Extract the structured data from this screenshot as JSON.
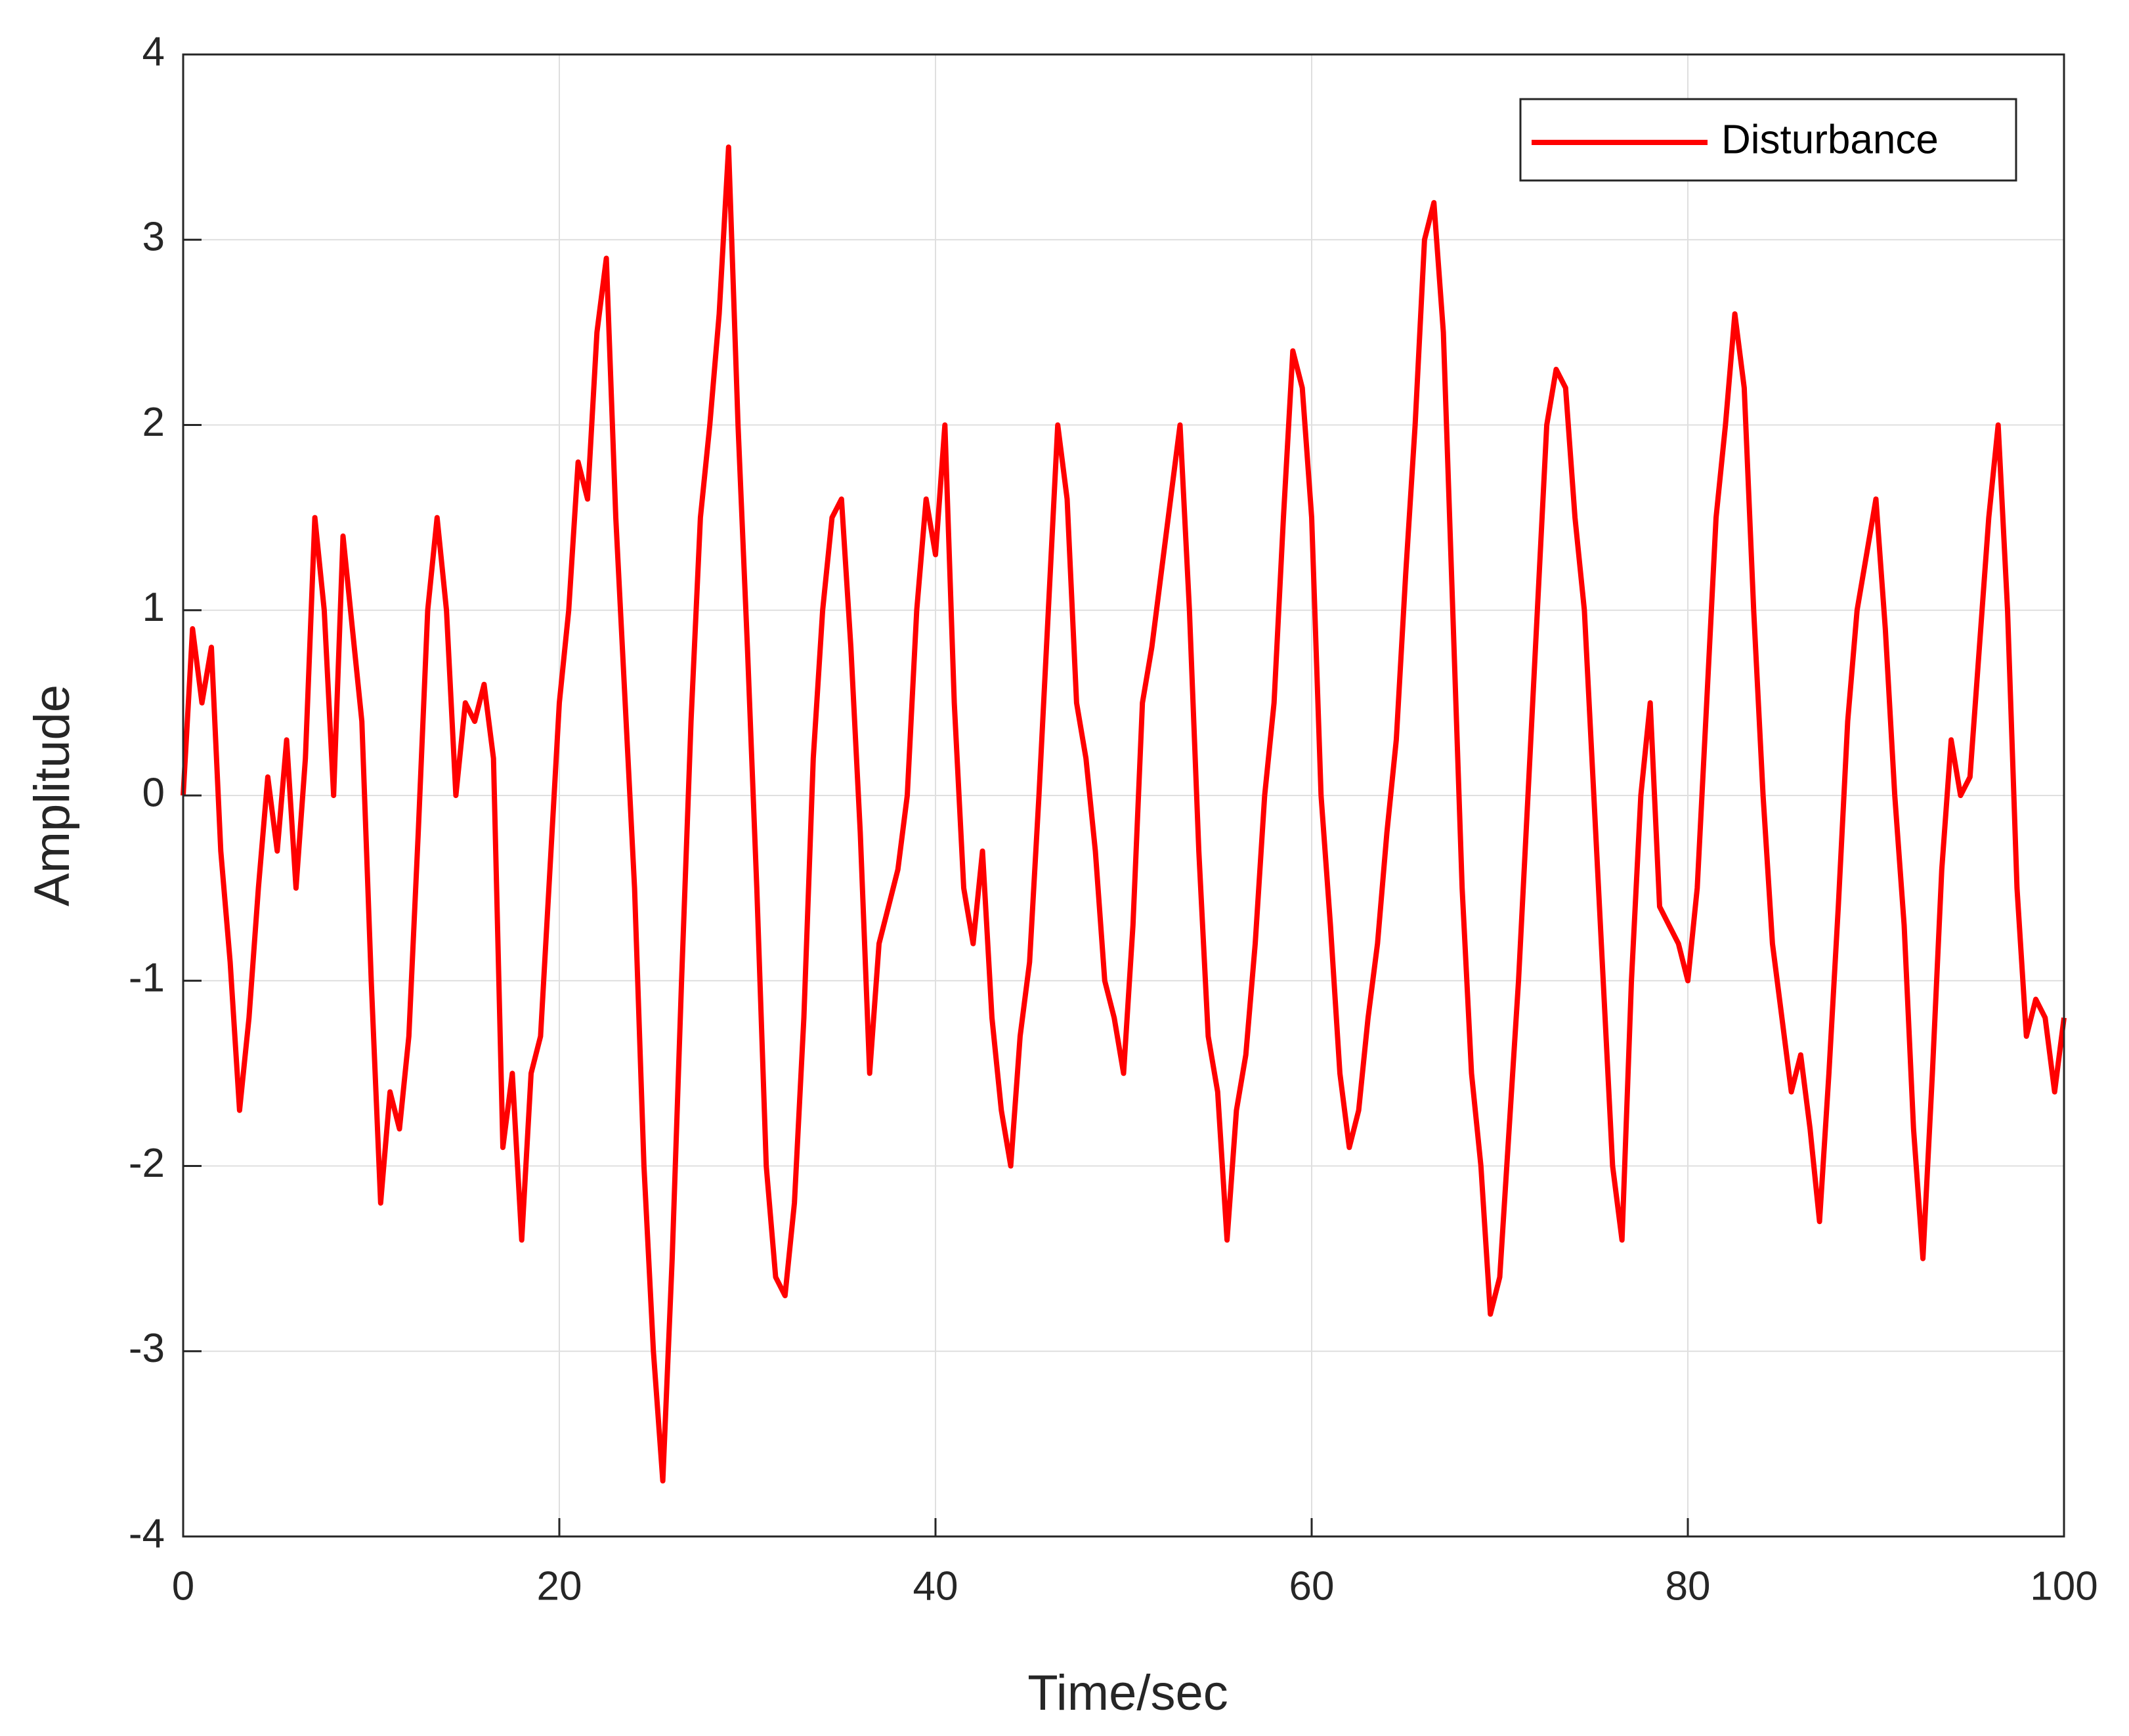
{
  "chart_data": {
    "type": "line",
    "xlabel": "Time/sec",
    "ylabel": "Amplitude",
    "x": [
      0,
      0.5,
      1,
      1.5,
      2,
      2.5,
      3,
      3.5,
      4,
      4.5,
      5,
      5.5,
      6,
      6.5,
      7,
      7.5,
      8,
      8.5,
      9,
      9.5,
      10,
      10.5,
      11,
      11.5,
      12,
      12.5,
      13,
      13.5,
      14,
      14.5,
      15,
      15.5,
      16,
      16.5,
      17,
      17.5,
      18,
      18.5,
      19,
      19.5,
      20,
      20.5,
      21,
      21.5,
      22,
      22.5,
      23,
      23.5,
      24,
      24.5,
      25,
      25.5,
      26,
      26.5,
      27,
      27.5,
      28,
      28.5,
      29,
      29.5,
      30,
      30.5,
      31,
      31.5,
      32,
      32.5,
      33,
      33.5,
      34,
      34.5,
      35,
      35.5,
      36,
      36.5,
      37,
      37.5,
      38,
      38.5,
      39,
      39.5,
      40,
      40.5,
      41,
      41.5,
      42,
      42.5,
      43,
      43.5,
      44,
      44.5,
      45,
      45.5,
      46,
      46.5,
      47,
      47.5,
      48,
      48.5,
      49,
      49.5,
      50,
      50.5,
      51,
      51.5,
      52,
      52.5,
      53,
      53.5,
      54,
      54.5,
      55,
      55.5,
      56,
      56.5,
      57,
      57.5,
      58,
      58.5,
      59,
      59.5,
      60,
      60.5,
      61,
      61.5,
      62,
      62.5,
      63,
      63.5,
      64,
      64.5,
      65,
      65.5,
      66,
      66.5,
      67,
      67.5,
      68,
      68.5,
      69,
      69.5,
      70,
      70.5,
      71,
      71.5,
      72,
      72.5,
      73,
      73.5,
      74,
      74.5,
      75,
      75.5,
      76,
      76.5,
      77,
      77.5,
      78,
      78.5,
      79,
      79.5,
      80,
      80.5,
      81,
      81.5,
      82,
      82.5,
      83,
      83.5,
      84,
      84.5,
      85,
      85.5,
      86,
      86.5,
      87,
      87.5,
      88,
      88.5,
      89,
      89.5,
      90,
      90.5,
      91,
      91.5,
      92,
      92.5,
      93,
      93.5,
      94,
      94.5,
      95,
      95.5,
      96,
      96.5,
      97,
      97.5,
      98,
      98.5,
      99,
      99.5,
      100
    ],
    "series": [
      {
        "name": "Disturbance",
        "color": "#ff0000",
        "values": [
          0,
          0.9,
          0.5,
          0.8,
          -0.3,
          -0.9,
          -1.7,
          -1.2,
          -0.5,
          0.1,
          -0.3,
          0.3,
          -0.5,
          0.2,
          1.5,
          1.0,
          0.0,
          1.4,
          0.9,
          0.4,
          -1.0,
          -2.2,
          -1.6,
          -1.8,
          -1.3,
          -0.2,
          1.0,
          1.5,
          1.0,
          0.0,
          0.5,
          0.4,
          0.6,
          0.2,
          -1.9,
          -1.5,
          -2.4,
          -1.5,
          -1.3,
          -0.4,
          0.5,
          1.0,
          1.8,
          1.6,
          2.5,
          2.9,
          1.5,
          0.5,
          -0.5,
          -2.0,
          -3.0,
          -3.7,
          -2.5,
          -1.0,
          0.4,
          1.5,
          2.0,
          2.6,
          3.5,
          2.0,
          0.8,
          -0.5,
          -2.0,
          -2.6,
          -2.7,
          -2.2,
          -1.2,
          0.2,
          1.0,
          1.5,
          1.6,
          0.8,
          -0.2,
          -1.5,
          -0.8,
          -0.6,
          -0.4,
          0.0,
          1.0,
          1.6,
          1.3,
          2.0,
          0.5,
          -0.5,
          -0.8,
          -0.3,
          -1.2,
          -1.7,
          -2.0,
          -1.3,
          -0.9,
          0.0,
          1.0,
          2.0,
          1.6,
          0.5,
          0.2,
          -0.3,
          -1.0,
          -1.2,
          -1.5,
          -0.7,
          0.5,
          0.8,
          1.2,
          1.6,
          2.0,
          1.0,
          -0.3,
          -1.3,
          -1.6,
          -2.4,
          -1.7,
          -1.4,
          -0.8,
          0.0,
          0.5,
          1.5,
          2.4,
          2.2,
          1.5,
          0.0,
          -0.7,
          -1.5,
          -1.9,
          -1.7,
          -1.2,
          -0.8,
          -0.2,
          0.3,
          1.2,
          2.0,
          3.0,
          3.2,
          2.5,
          1.0,
          -0.5,
          -1.5,
          -2.0,
          -2.8,
          -2.6,
          -1.8,
          -1.0,
          0.0,
          1.0,
          2.0,
          2.3,
          2.2,
          1.5,
          1.0,
          0.0,
          -1.0,
          -2.0,
          -2.4,
          -1.0,
          0.0,
          0.5,
          -0.6,
          -0.7,
          -0.8,
          -1.0,
          -0.5,
          0.5,
          1.5,
          2.0,
          2.6,
          2.2,
          1.0,
          0.0,
          -0.8,
          -1.2,
          -1.6,
          -1.4,
          -1.8,
          -2.3,
          -1.5,
          -0.6,
          0.4,
          1.0,
          1.3,
          1.6,
          0.9,
          0.0,
          -0.7,
          -1.8,
          -2.5,
          -1.5,
          -0.4,
          0.3,
          0.0,
          0.1,
          0.8,
          1.5,
          2.0,
          1.0,
          -0.5,
          -1.3,
          -1.1,
          -1.2,
          -1.6,
          -1.2
        ]
      }
    ],
    "xlim": [
      0,
      100
    ],
    "xticks": [
      0,
      20,
      40,
      60,
      80,
      100
    ],
    "ylim": [
      -4,
      4
    ],
    "yticks": [
      -4,
      -3,
      -2,
      -1,
      0,
      1,
      2,
      3,
      4
    ],
    "grid": true,
    "legend": "upper right"
  }
}
